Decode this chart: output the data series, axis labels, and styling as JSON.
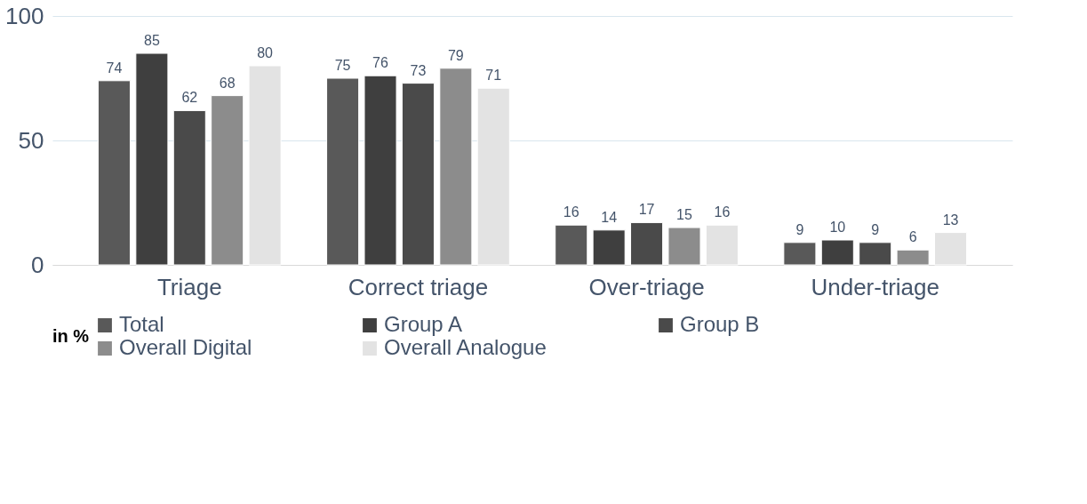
{
  "chart_data": {
    "type": "bar",
    "categories": [
      "Triage",
      "Correct triage",
      "Over-triage",
      "Under-triage"
    ],
    "series": [
      {
        "name": "Total",
        "color": "#595959",
        "values": [
          74,
          75,
          16,
          9
        ]
      },
      {
        "name": "Group A",
        "color": "#3f3f3f",
        "values": [
          85,
          76,
          14,
          10
        ]
      },
      {
        "name": "Group B",
        "color": "#4a4a4a",
        "values": [
          62,
          73,
          17,
          9
        ]
      },
      {
        "name": "Overall Digital",
        "color": "#8c8c8c",
        "values": [
          68,
          79,
          15,
          6
        ]
      },
      {
        "name": "Overall Analogue",
        "color": "#e3e3e3",
        "values": [
          80,
          71,
          16,
          13
        ]
      }
    ],
    "legend_title": "in %",
    "legend": "bottom",
    "ylim": [
      0,
      100
    ],
    "yticks": [
      0,
      50,
      100
    ],
    "grid": "y",
    "data_labels": true
  }
}
